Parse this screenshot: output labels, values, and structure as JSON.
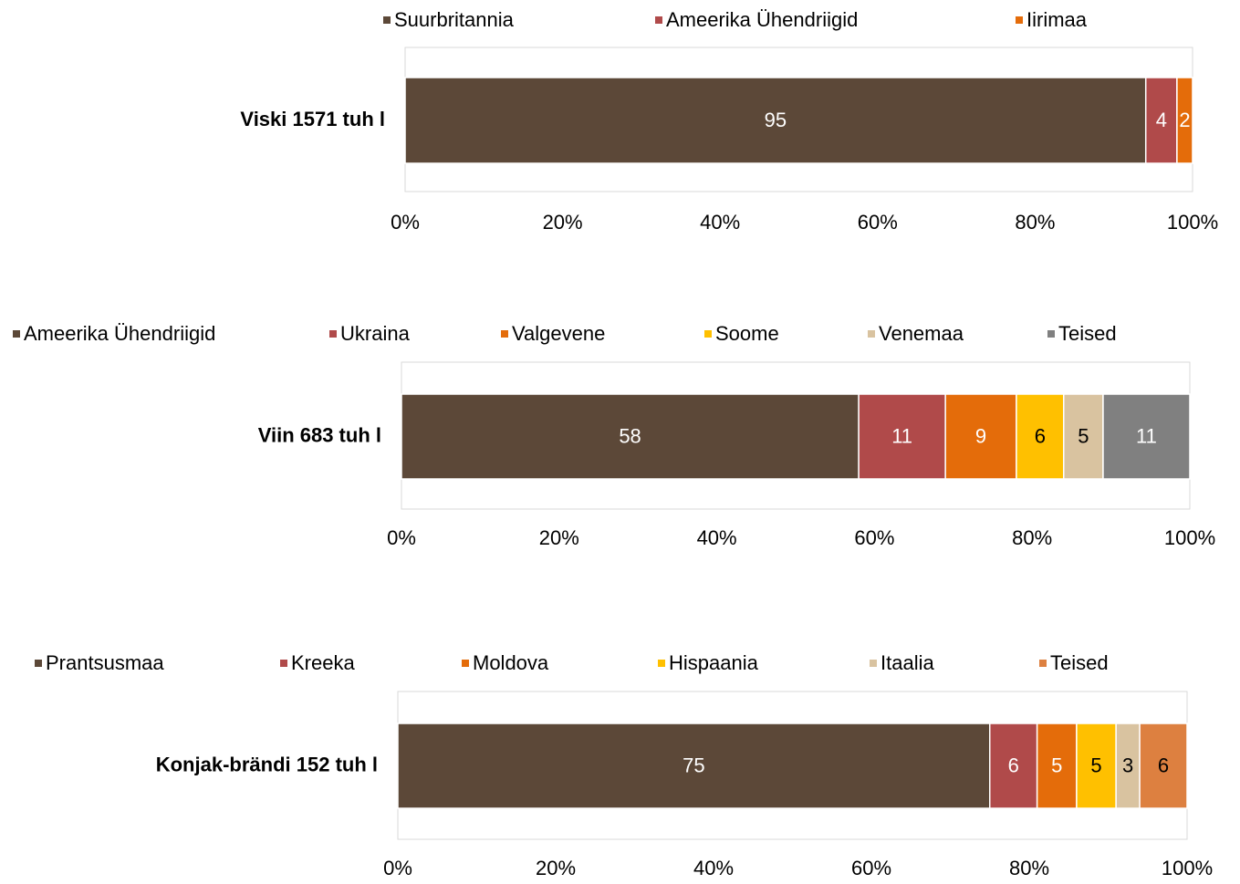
{
  "chart_data": [
    {
      "type": "bar",
      "orientation": "horizontal",
      "stacked": "percent",
      "categories": [
        "Viski 1571 tuh l"
      ],
      "series": [
        {
          "name": "Suurbritannia",
          "color": "#5c4838",
          "values": [
            95
          ]
        },
        {
          "name": "Ameerika Ühendriigid",
          "color": "#b04a4a",
          "values": [
            4
          ]
        },
        {
          "name": "Iirimaa",
          "color": "#e46c0a",
          "values": [
            2
          ]
        }
      ],
      "xlim": [
        0,
        100
      ],
      "xticks": [
        {
          "value": 0,
          "label": "0%"
        },
        {
          "value": 20,
          "label": "20%"
        },
        {
          "value": 40,
          "label": "40%"
        },
        {
          "value": 60,
          "label": "60%"
        },
        {
          "value": 80,
          "label": "80%"
        },
        {
          "value": 100,
          "label": "100%"
        }
      ],
      "legend": "top"
    },
    {
      "type": "bar",
      "orientation": "horizontal",
      "stacked": "percent",
      "categories": [
        "Viin 683 tuh l"
      ],
      "series": [
        {
          "name": "Ameerika Ühendriigid",
          "color": "#5c4838",
          "values": [
            58
          ]
        },
        {
          "name": "Ukraina",
          "color": "#b04a4a",
          "values": [
            11
          ]
        },
        {
          "name": "Valgevene",
          "color": "#e46c0a",
          "values": [
            9
          ]
        },
        {
          "name": "Soome",
          "color": "#ffc000",
          "values": [
            6
          ]
        },
        {
          "name": "Venemaa",
          "color": "#d9c3a0",
          "values": [
            5
          ]
        },
        {
          "name": "Teised",
          "color": "#808080",
          "values": [
            11
          ]
        }
      ],
      "xlim": [
        0,
        100
      ],
      "xticks": [
        {
          "value": 0,
          "label": "0%"
        },
        {
          "value": 20,
          "label": "20%"
        },
        {
          "value": 40,
          "label": "40%"
        },
        {
          "value": 60,
          "label": "60%"
        },
        {
          "value": 80,
          "label": "80%"
        },
        {
          "value": 100,
          "label": "100%"
        }
      ],
      "legend": "top"
    },
    {
      "type": "bar",
      "orientation": "horizontal",
      "stacked": "percent",
      "categories": [
        "Konjak-brändi 152 tuh l"
      ],
      "series": [
        {
          "name": "Prantsusmaa",
          "color": "#5c4838",
          "values": [
            75
          ]
        },
        {
          "name": "Kreeka",
          "color": "#b04a4a",
          "values": [
            6
          ]
        },
        {
          "name": "Moldova",
          "color": "#e46c0a",
          "values": [
            5
          ]
        },
        {
          "name": "Hispaania",
          "color": "#ffc000",
          "values": [
            5
          ]
        },
        {
          "name": "Itaalia",
          "color": "#d9c3a0",
          "values": [
            3
          ]
        },
        {
          "name": "Teised",
          "color": "#dd8040",
          "values": [
            6
          ]
        }
      ],
      "xlim": [
        0,
        100
      ],
      "xticks": [
        {
          "value": 0,
          "label": "0%"
        },
        {
          "value": 20,
          "label": "20%"
        },
        {
          "value": 40,
          "label": "40%"
        },
        {
          "value": 60,
          "label": "60%"
        },
        {
          "value": 80,
          "label": "80%"
        },
        {
          "value": 100,
          "label": "100%"
        }
      ],
      "legend": "top"
    }
  ]
}
